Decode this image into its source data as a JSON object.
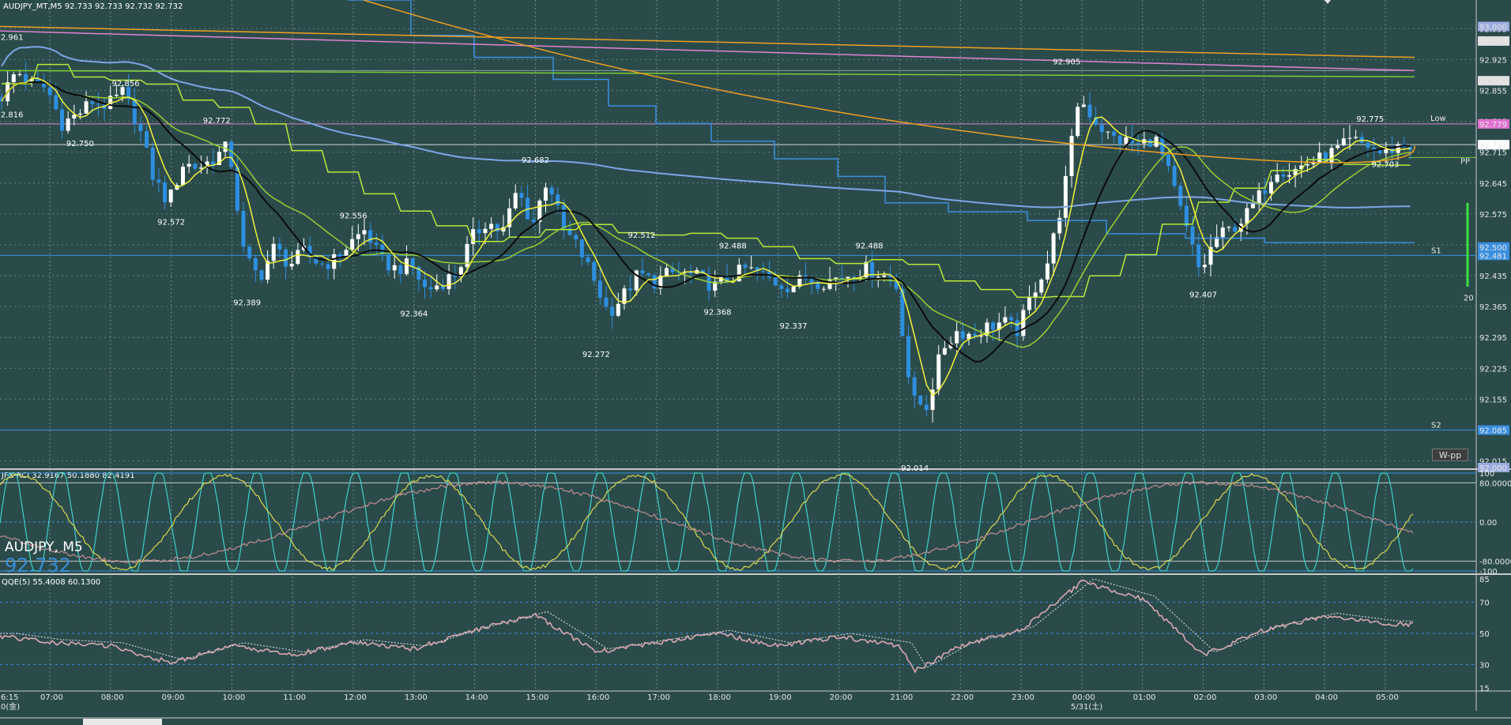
{
  "main_header": "AUDJPY_MT,M5  92.733 92.733 92.732 92.732",
  "symbol": {
    "name": "AUDJPY, M5",
    "price": "92.732"
  },
  "rci_header": "JFX-RCI 32.9167 50.1880 82.4191",
  "qqe_header": "QQE(5) 55.4008 60.1300",
  "button_label": "W-pp",
  "pivot_labels": {
    "low": "Low",
    "pp": "PP",
    "s1": "S1",
    "s2": "S2",
    "bar_count": "20"
  },
  "colors": {
    "background": "#2b4b4b",
    "bull": "#ffffff",
    "bear": "#2e8fe0",
    "ma_fast": "#f2f23a",
    "ma_slow": "#0b0b0b",
    "ma_mid": "#9acd32",
    "ma_long": "#7ea6e6",
    "step_blue": "#3a8fe0",
    "orange": "#f0a020",
    "pink": "#e084d0",
    "rci_cyan": "#3fd0c8",
    "rci_yellow": "#d8d850",
    "rci_pink": "#c08c90"
  },
  "chart_data": [
    {
      "type": "candlestick",
      "panel": "price",
      "x": [
        "6:15",
        "07:00",
        "08:00",
        "09:00",
        "10:00",
        "11:00",
        "12:00",
        "13:00",
        "14:00",
        "15:00",
        "16:00",
        "17:00",
        "18:00",
        "19:00",
        "20:00",
        "21:00",
        "22:00",
        "23:00",
        "00:00",
        "01:00",
        "02:00",
        "03:00",
        "04:00",
        "05:00"
      ],
      "x_sub": [
        "0(金)",
        "5/31(土)"
      ],
      "yticks": [
        "92.015",
        "92.085",
        "92.155",
        "92.225",
        "92.295",
        "92.365",
        "92.435",
        "92.505",
        "92.575",
        "92.645",
        "92.715",
        "92.785",
        "92.855",
        "92.925",
        "92.995"
      ],
      "ylim": [
        92.0,
        93.06
      ],
      "price_path": [
        [
          "6:15",
          92.84
        ],
        [
          "06:30",
          92.9
        ],
        [
          "06:45",
          92.87
        ],
        [
          "07:00",
          92.86
        ],
        [
          "07:15",
          92.78
        ],
        [
          "07:30",
          92.8
        ],
        [
          "07:45",
          92.83
        ],
        [
          "08:00",
          92.82
        ],
        [
          "08:15",
          92.85
        ],
        [
          "08:30",
          92.78
        ],
        [
          "08:45",
          92.66
        ],
        [
          "09:00",
          92.6
        ],
        [
          "09:15",
          92.69
        ],
        [
          "09:30",
          92.68
        ],
        [
          "09:45",
          92.7
        ],
        [
          "10:00",
          92.73
        ],
        [
          "10:15",
          92.48
        ],
        [
          "10:30",
          92.43
        ],
        [
          "10:45",
          92.5
        ],
        [
          "11:00",
          92.46
        ],
        [
          "11:15",
          92.49
        ],
        [
          "11:30",
          92.46
        ],
        [
          "11:45",
          92.47
        ],
        [
          "12:00",
          92.51
        ],
        [
          "12:15",
          92.54
        ],
        [
          "12:30",
          92.47
        ],
        [
          "12:45",
          92.45
        ],
        [
          "13:00",
          92.46
        ],
        [
          "13:15",
          92.4
        ],
        [
          "13:30",
          92.42
        ],
        [
          "13:45",
          92.44
        ],
        [
          "14:00",
          92.52
        ],
        [
          "14:15",
          92.56
        ],
        [
          "14:30",
          92.53
        ],
        [
          "14:45",
          92.63
        ],
        [
          "15:00",
          92.55
        ],
        [
          "15:15",
          92.66
        ],
        [
          "15:30",
          92.54
        ],
        [
          "15:45",
          92.5
        ],
        [
          "16:00",
          92.43
        ],
        [
          "16:15",
          92.35
        ],
        [
          "16:30",
          92.39
        ],
        [
          "16:45",
          92.44
        ],
        [
          "17:00",
          92.42
        ],
        [
          "17:15",
          92.44
        ],
        [
          "17:30",
          92.44
        ],
        [
          "17:45",
          92.43
        ],
        [
          "18:00",
          92.41
        ],
        [
          "18:15",
          92.43
        ],
        [
          "18:30",
          92.45
        ],
        [
          "18:45",
          92.44
        ],
        [
          "19:00",
          92.42
        ],
        [
          "19:15",
          92.41
        ],
        [
          "19:30",
          92.43
        ],
        [
          "19:45",
          92.42
        ],
        [
          "20:00",
          92.43
        ],
        [
          "20:15",
          92.44
        ],
        [
          "20:30",
          92.45
        ],
        [
          "20:45",
          92.44
        ],
        [
          "21:00",
          92.41
        ],
        [
          "21:15",
          92.15
        ],
        [
          "21:30",
          92.14
        ],
        [
          "21:45",
          92.27
        ],
        [
          "22:00",
          92.31
        ],
        [
          "22:15",
          92.3
        ],
        [
          "22:30",
          92.32
        ],
        [
          "22:45",
          92.33
        ],
        [
          "23:00",
          92.31
        ],
        [
          "23:15",
          92.4
        ],
        [
          "23:30",
          92.47
        ],
        [
          "23:45",
          92.62
        ],
        [
          "00:00",
          92.84
        ],
        [
          "00:15",
          92.79
        ],
        [
          "00:30",
          92.75
        ],
        [
          "00:45",
          92.74
        ],
        [
          "01:00",
          92.73
        ],
        [
          "01:15",
          92.75
        ],
        [
          "01:30",
          92.66
        ],
        [
          "01:45",
          92.55
        ],
        [
          "02:00",
          92.44
        ],
        [
          "02:15",
          92.52
        ],
        [
          "02:30",
          92.54
        ],
        [
          "02:45",
          92.57
        ],
        [
          "03:00",
          92.62
        ],
        [
          "03:15",
          92.68
        ],
        [
          "03:30",
          92.67
        ],
        [
          "03:45",
          92.69
        ],
        [
          "04:00",
          92.7
        ],
        [
          "04:15",
          92.72
        ],
        [
          "04:30",
          92.74
        ],
        [
          "04:45",
          92.73
        ],
        [
          "05:00",
          92.71
        ],
        [
          "05:15",
          92.73
        ],
        [
          "05:30",
          92.73
        ]
      ],
      "labels": [
        {
          "t": "6:15",
          "v": "92.961"
        },
        {
          "t": "6:15",
          "v": "92.816"
        },
        {
          "t": "07:30",
          "v": "92.750"
        },
        {
          "t": "08:15",
          "v": "92.856"
        },
        {
          "t": "09:00",
          "v": "92.572"
        },
        {
          "t": "09:45",
          "v": "92.772"
        },
        {
          "t": "10:15",
          "v": "92.389"
        },
        {
          "t": "12:00",
          "v": "92.556"
        },
        {
          "t": "13:00",
          "v": "92.364"
        },
        {
          "t": "15:00",
          "v": "92.682"
        },
        {
          "t": "16:00",
          "v": "92.272"
        },
        {
          "t": "16:45",
          "v": "92.512"
        },
        {
          "t": "18:00",
          "v": "92.368"
        },
        {
          "t": "18:15",
          "v": "92.488"
        },
        {
          "t": "19:15",
          "v": "92.337"
        },
        {
          "t": "20:30",
          "v": "92.488"
        },
        {
          "t": "21:15",
          "v": "92.014"
        },
        {
          "t": "23:45",
          "v": "92.905"
        },
        {
          "t": "02:00",
          "v": "92.407"
        },
        {
          "t": "04:45",
          "v": "92.775"
        },
        {
          "t": "05:00",
          "v": "92.703"
        }
      ],
      "axis_markers": [
        {
          "v": "93.000",
          "color": "#9ad"
        },
        {
          "v": "92.967",
          "color": "#e0e0e0"
        },
        {
          "v": "92.877",
          "color": "#e0e0e0"
        },
        {
          "v": "92.779",
          "color": "#e070d0"
        },
        {
          "v": "92.732",
          "color": "#ffffff"
        },
        {
          "v": "92.500",
          "color": "#3a8fe0"
        },
        {
          "v": "92.481",
          "color": "#3a8fe0"
        },
        {
          "v": "92.085",
          "color": "#3a8fe0"
        },
        {
          "v": "92.000",
          "color": "#9ad"
        }
      ],
      "levels": {
        "low": 92.779,
        "pp": 92.703,
        "s1": 92.481,
        "s2": 92.085
      }
    },
    {
      "type": "line",
      "panel": "rci",
      "yticks": [
        "100",
        "80.0000",
        "0.00",
        "-80.0000",
        "-100"
      ],
      "ylim": [
        -100,
        100
      ]
    },
    {
      "type": "line",
      "panel": "qqe",
      "yticks": [
        "85",
        "70",
        "50",
        "30",
        "15"
      ],
      "ylim": [
        15,
        85
      ],
      "levels": [
        70,
        50,
        30
      ],
      "series": [
        {
          "values": [
            [
              "6:15",
              48
            ],
            [
              "07:00",
              44
            ],
            [
              "08:00",
              42
            ],
            [
              "09:00",
              31
            ],
            [
              "10:00",
              42
            ],
            [
              "11:00",
              36
            ],
            [
              "12:00",
              44
            ],
            [
              "13:00",
              40
            ],
            [
              "14:00",
              52
            ],
            [
              "15:00",
              62
            ],
            [
              "16:00",
              38
            ],
            [
              "17:00",
              44
            ],
            [
              "18:00",
              50
            ],
            [
              "19:00",
              42
            ],
            [
              "20:00",
              48
            ],
            [
              "21:00",
              42
            ],
            [
              "21:15",
              26
            ],
            [
              "22:00",
              42
            ],
            [
              "23:00",
              52
            ],
            [
              "00:00",
              83
            ],
            [
              "01:00",
              72
            ],
            [
              "02:00",
              36
            ],
            [
              "03:00",
              52
            ],
            [
              "04:00",
              61
            ],
            [
              "05:00",
              56
            ],
            [
              "05:30",
              56
            ]
          ]
        }
      ]
    }
  ]
}
